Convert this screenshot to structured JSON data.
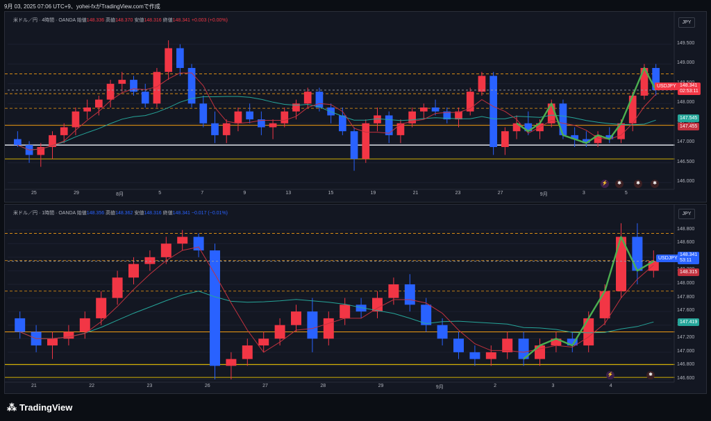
{
  "header": {
    "text": "9月 03, 2025 07:06 UTC+9、yohei-fxがTradingView.comで作成"
  },
  "top": {
    "title_symbol": "米ドル／円 · 4時間 · OANDA",
    "o_label": "始値",
    "o": "148.336",
    "h_label": "高値",
    "h": "148.370",
    "l_label": "安値",
    "l": "148.316",
    "c_label": "終値",
    "c": "148.341",
    "change": "+0.003 (+0.00%)",
    "unit": "JPY",
    "price_ticks": [
      "149.500",
      "149.000",
      "148.500",
      "148.000",
      "147.500",
      "147.000",
      "146.500",
      "146.000"
    ],
    "time_ticks": [
      "25",
      "29",
      "8月",
      "5",
      "7",
      "9",
      "13",
      "15",
      "19",
      "21",
      "23",
      "27",
      "9月",
      "3",
      "5"
    ],
    "tag_symbol": "USDJPY",
    "tag_price": "148.341",
    "tag_timer": "02:53:11",
    "tag_ma1": "147.545",
    "tag_ma2": "147.455"
  },
  "bottom": {
    "title_symbol": "米ドル／円 · 1時間 · OANDA",
    "o_label": "始値",
    "o": "148.356",
    "h_label": "高値",
    "h": "148.362",
    "l_label": "安値",
    "l": "148.316",
    "c_label": "終値",
    "c": "148.341",
    "change": "−0.017 (−0.01%)",
    "unit": "JPY",
    "price_ticks": [
      "148.800",
      "148.600",
      "148.400",
      "148.200",
      "148.000",
      "147.800",
      "147.600",
      "147.400",
      "147.200",
      "147.000",
      "146.800",
      "146.600"
    ],
    "time_ticks": [
      "21",
      "22",
      "23",
      "26",
      "27",
      "28",
      "29",
      "9月",
      "2",
      "3",
      "4"
    ],
    "tag_symbol": "USDJPY",
    "tag_price": "148.341",
    "tag_timer": "53:11",
    "tag_ma1": "148.315",
    "tag_ma2": "147.419"
  },
  "brand": {
    "name": "TradingView"
  },
  "colors": {
    "up": "#f23645",
    "down": "#2962ff",
    "ma_fast": "#c2323f",
    "ma_slow": "#26a69a",
    "wave": "#4caf50",
    "line_orange": "#f39c12",
    "line_white": "#d1d4dc",
    "line_yellow": "#d4b106"
  },
  "chart_data": [
    {
      "type": "candlestick",
      "title": "米ドル／円 · 4時間 · OANDA",
      "ylim": [
        145.9,
        149.9
      ],
      "x_ticks": [
        "25",
        "29",
        "8月",
        "5",
        "7",
        "9",
        "13",
        "15",
        "19",
        "21",
        "23",
        "27",
        "9月",
        "3",
        "5"
      ],
      "horizontal_levels": [
        148.75,
        148.25,
        147.88,
        147.45,
        146.95,
        146.6
      ],
      "ohlc": [
        [
          147.1,
          147.3,
          146.9,
          146.95
        ],
        [
          146.95,
          147.05,
          146.5,
          146.7
        ],
        [
          146.7,
          147.0,
          146.4,
          146.9
        ],
        [
          146.9,
          147.3,
          146.6,
          147.2
        ],
        [
          147.2,
          147.5,
          147.0,
          147.4
        ],
        [
          147.4,
          147.9,
          147.2,
          147.8
        ],
        [
          147.8,
          148.1,
          147.6,
          147.9
        ],
        [
          147.9,
          148.2,
          147.7,
          148.1
        ],
        [
          148.1,
          148.6,
          147.9,
          148.5
        ],
        [
          148.5,
          148.8,
          148.3,
          148.6
        ],
        [
          148.6,
          148.7,
          148.2,
          148.3
        ],
        [
          148.3,
          148.5,
          147.9,
          148.0
        ],
        [
          148.0,
          148.9,
          147.9,
          148.8
        ],
        [
          148.8,
          149.6,
          148.6,
          149.4
        ],
        [
          149.4,
          149.5,
          148.7,
          148.9
        ],
        [
          148.9,
          149.0,
          147.9,
          148.0
        ],
        [
          148.0,
          148.2,
          147.4,
          147.5
        ],
        [
          147.5,
          147.8,
          147.0,
          147.2
        ],
        [
          147.2,
          147.6,
          147.0,
          147.5
        ],
        [
          147.5,
          147.9,
          147.3,
          147.8
        ],
        [
          147.8,
          148.0,
          147.5,
          147.6
        ],
        [
          147.6,
          147.8,
          147.2,
          147.4
        ],
        [
          147.4,
          147.6,
          147.1,
          147.5
        ],
        [
          147.5,
          147.9,
          147.4,
          147.8
        ],
        [
          147.8,
          148.1,
          147.6,
          148.0
        ],
        [
          148.0,
          148.4,
          147.9,
          148.3
        ],
        [
          148.3,
          148.4,
          147.8,
          147.9
        ],
        [
          147.9,
          148.0,
          147.5,
          147.7
        ],
        [
          147.7,
          147.9,
          147.2,
          147.3
        ],
        [
          147.3,
          147.4,
          146.3,
          146.6
        ],
        [
          146.6,
          147.6,
          146.5,
          147.5
        ],
        [
          147.5,
          147.9,
          147.3,
          147.7
        ],
        [
          147.7,
          147.8,
          147.0,
          147.2
        ],
        [
          147.2,
          147.6,
          147.0,
          147.5
        ],
        [
          147.5,
          147.9,
          147.4,
          147.8
        ],
        [
          147.8,
          148.0,
          147.6,
          147.9
        ],
        [
          147.9,
          148.1,
          147.7,
          147.8
        ],
        [
          147.8,
          147.9,
          147.5,
          147.6
        ],
        [
          147.6,
          147.9,
          147.4,
          147.8
        ],
        [
          147.8,
          148.4,
          147.7,
          148.3
        ],
        [
          148.3,
          148.8,
          148.2,
          148.7
        ],
        [
          148.7,
          148.8,
          146.7,
          146.9
        ],
        [
          146.9,
          147.4,
          146.7,
          147.3
        ],
        [
          147.3,
          147.7,
          147.1,
          147.5
        ],
        [
          147.5,
          147.8,
          147.2,
          147.3
        ],
        [
          147.3,
          147.6,
          147.1,
          147.5
        ],
        [
          147.5,
          148.1,
          147.4,
          148.0
        ],
        [
          148.0,
          148.1,
          147.1,
          147.2
        ],
        [
          147.2,
          147.4,
          146.9,
          147.1
        ],
        [
          147.1,
          147.3,
          146.9,
          147.0
        ],
        [
          147.0,
          147.3,
          146.9,
          147.2
        ],
        [
          147.2,
          147.4,
          147.0,
          147.1
        ],
        [
          147.1,
          147.6,
          147.0,
          147.5
        ],
        [
          147.5,
          148.3,
          147.3,
          148.2
        ],
        [
          148.2,
          149.0,
          148.1,
          148.9
        ],
        [
          148.9,
          149.0,
          148.2,
          148.34
        ]
      ]
    },
    {
      "type": "candlestick",
      "title": "米ドル／円 · 1時間 · OANDA",
      "ylim": [
        146.6,
        148.95
      ],
      "x_ticks": [
        "21",
        "22",
        "23",
        "26",
        "27",
        "28",
        "29",
        "9月",
        "2",
        "3",
        "4"
      ],
      "horizontal_levels": [
        148.75,
        148.35,
        147.9,
        147.3,
        146.82,
        146.63
      ],
      "ohlc": [
        [
          147.5,
          147.6,
          147.2,
          147.3
        ],
        [
          147.3,
          147.4,
          147.0,
          147.1
        ],
        [
          147.1,
          147.3,
          146.9,
          147.2
        ],
        [
          147.2,
          147.4,
          147.1,
          147.3
        ],
        [
          147.3,
          147.6,
          147.2,
          147.5
        ],
        [
          147.5,
          147.9,
          147.4,
          147.8
        ],
        [
          147.8,
          148.2,
          147.7,
          148.1
        ],
        [
          148.1,
          148.4,
          148.0,
          148.3
        ],
        [
          148.3,
          148.5,
          148.2,
          148.4
        ],
        [
          148.4,
          148.7,
          148.3,
          148.6
        ],
        [
          148.6,
          148.8,
          148.5,
          148.7
        ],
        [
          148.7,
          148.75,
          148.4,
          148.5
        ],
        [
          148.5,
          148.6,
          146.6,
          146.8
        ],
        [
          146.8,
          147.0,
          146.6,
          146.9
        ],
        [
          146.9,
          147.2,
          146.8,
          147.1
        ],
        [
          147.1,
          147.3,
          147.0,
          147.2
        ],
        [
          147.2,
          147.5,
          147.1,
          147.4
        ],
        [
          147.4,
          147.7,
          147.3,
          147.6
        ],
        [
          147.6,
          147.8,
          147.0,
          147.2
        ],
        [
          147.2,
          147.6,
          147.1,
          147.5
        ],
        [
          147.5,
          147.8,
          147.4,
          147.7
        ],
        [
          147.7,
          147.8,
          147.5,
          147.6
        ],
        [
          147.6,
          147.9,
          147.5,
          147.8
        ],
        [
          147.8,
          148.1,
          147.7,
          148.0
        ],
        [
          148.0,
          148.15,
          147.6,
          147.7
        ],
        [
          147.7,
          147.8,
          147.3,
          147.4
        ],
        [
          147.4,
          147.5,
          147.1,
          147.2
        ],
        [
          147.2,
          147.3,
          146.9,
          147.0
        ],
        [
          147.0,
          147.1,
          146.8,
          146.9
        ],
        [
          146.9,
          147.1,
          146.8,
          147.0
        ],
        [
          147.0,
          147.3,
          146.9,
          147.2
        ],
        [
          147.2,
          147.3,
          146.8,
          146.9
        ],
        [
          146.9,
          147.2,
          146.8,
          147.1
        ],
        [
          147.1,
          147.3,
          147.0,
          147.2
        ],
        [
          147.2,
          147.3,
          147.0,
          147.1
        ],
        [
          147.1,
          147.6,
          147.0,
          147.5
        ],
        [
          147.5,
          148.0,
          147.4,
          147.9
        ],
        [
          147.9,
          148.9,
          147.8,
          148.7
        ],
        [
          148.7,
          148.9,
          148.0,
          148.2
        ],
        [
          148.2,
          148.5,
          148.1,
          148.34
        ]
      ]
    }
  ]
}
